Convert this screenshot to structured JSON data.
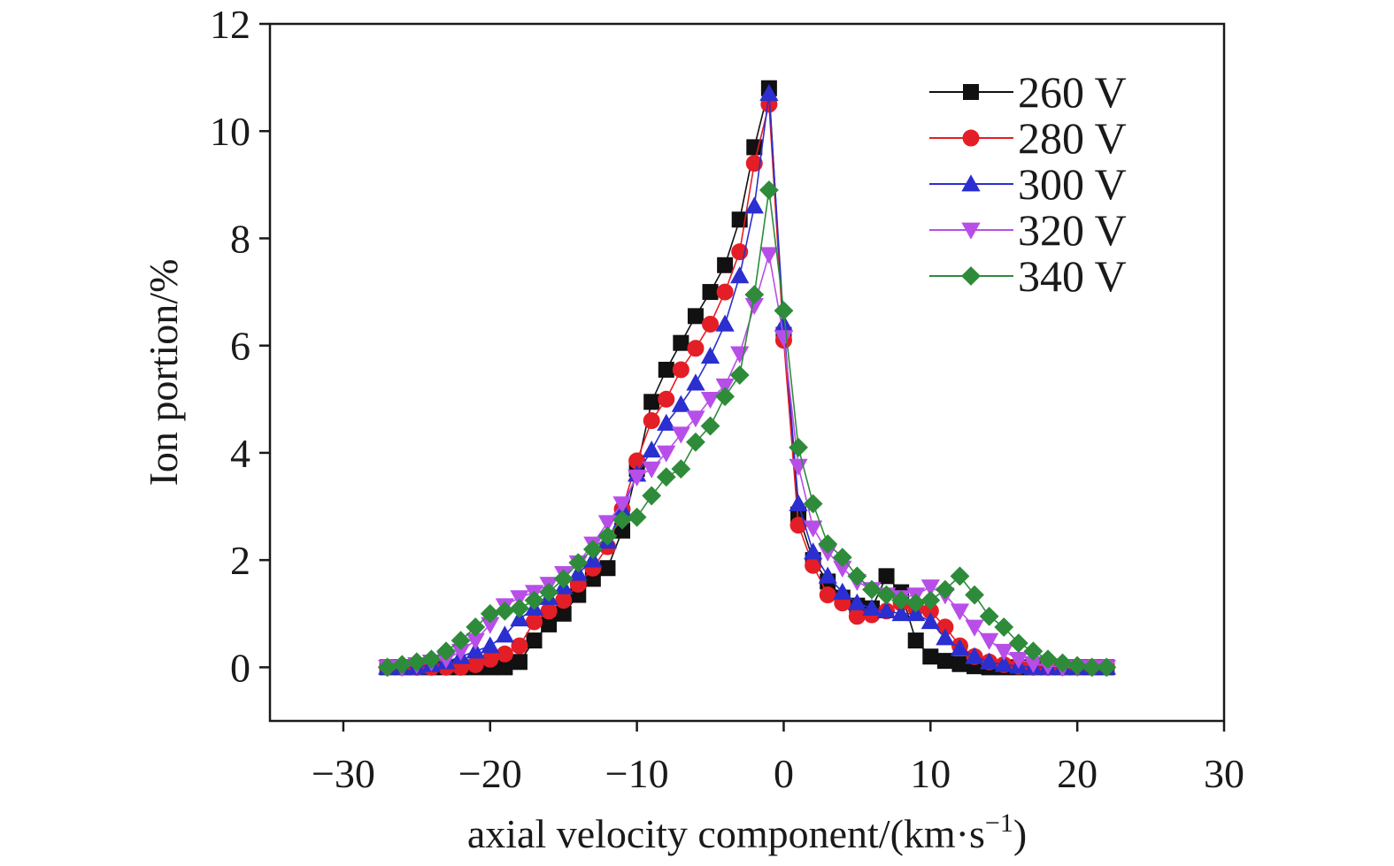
{
  "chart_data": {
    "type": "line",
    "title": "",
    "xlabel": "axial velocity component/(km·s",
    "xlabel_sup": "−1",
    "xlabel_end": ")",
    "ylabel": "Ion portion/%",
    "xlim": [
      -35,
      30
    ],
    "ylim": [
      -1,
      12
    ],
    "xticks": [
      -30,
      -20,
      -10,
      0,
      10,
      20,
      30
    ],
    "xtick_labels": [
      "−30",
      "−20",
      "−10",
      "0",
      "10",
      "20",
      "30"
    ],
    "yticks": [
      0,
      2,
      4,
      6,
      8,
      10,
      12
    ],
    "ytick_labels": [
      "0",
      "2",
      "4",
      "6",
      "8",
      "10",
      "12"
    ],
    "grid": false,
    "legend_position": "top-right",
    "series": [
      {
        "name": "260 V",
        "color": "#111111",
        "marker": "square",
        "x": [
          -27,
          -26,
          -25,
          -24,
          -23,
          -22,
          -21,
          -20,
          -19,
          -18,
          -17,
          -16,
          -15,
          -14,
          -13,
          -12,
          -11,
          -10,
          -9,
          -8,
          -7,
          -6,
          -5,
          -4,
          -3,
          -2,
          -1,
          0,
          1,
          2,
          3,
          4,
          5,
          6,
          7,
          8,
          9,
          10,
          11,
          12,
          13,
          14,
          15,
          16,
          17,
          18,
          19,
          20,
          21,
          22
        ],
        "y": [
          0,
          0,
          0,
          0,
          0,
          0,
          0,
          0,
          0,
          0.1,
          0.5,
          0.8,
          1.0,
          1.35,
          1.65,
          1.85,
          2.55,
          3.7,
          4.95,
          5.55,
          6.05,
          6.55,
          7.0,
          7.5,
          8.35,
          9.7,
          10.8,
          6.2,
          2.85,
          2.0,
          1.6,
          1.3,
          1.15,
          1.1,
          1.7,
          1.4,
          0.5,
          0.2,
          0.12,
          0.06,
          0.02,
          0,
          0,
          0,
          0,
          0,
          0,
          0,
          0,
          0
        ]
      },
      {
        "name": "280 V",
        "color": "#e41e26",
        "marker": "circle",
        "x": [
          -27,
          -26,
          -25,
          -24,
          -23,
          -22,
          -21,
          -20,
          -19,
          -18,
          -17,
          -16,
          -15,
          -14,
          -13,
          -12,
          -11,
          -10,
          -9,
          -8,
          -7,
          -6,
          -5,
          -4,
          -3,
          -2,
          -1,
          0,
          1,
          2,
          3,
          4,
          5,
          6,
          7,
          8,
          9,
          10,
          11,
          12,
          13,
          14,
          15,
          16,
          17,
          18,
          19,
          20,
          21,
          22
        ],
        "y": [
          0,
          0,
          0,
          0,
          0,
          0,
          0.05,
          0.15,
          0.25,
          0.4,
          0.85,
          1.05,
          1.25,
          1.55,
          1.85,
          2.25,
          2.95,
          3.85,
          4.6,
          5.0,
          5.55,
          5.95,
          6.4,
          7.0,
          7.75,
          9.4,
          10.5,
          6.1,
          2.65,
          1.9,
          1.35,
          1.2,
          0.95,
          0.98,
          1.05,
          1.2,
          1.1,
          1.05,
          0.75,
          0.4,
          0.2,
          0.1,
          0.05,
          0.02,
          0,
          0,
          0,
          0,
          0,
          0
        ]
      },
      {
        "name": "300 V",
        "color": "#2b2fcf",
        "marker": "triangle-up",
        "x": [
          -27,
          -26,
          -25,
          -24,
          -23,
          -22,
          -21,
          -20,
          -19,
          -18,
          -17,
          -16,
          -15,
          -14,
          -13,
          -12,
          -11,
          -10,
          -9,
          -8,
          -7,
          -6,
          -5,
          -4,
          -3,
          -2,
          -1,
          0,
          1,
          2,
          3,
          4,
          5,
          6,
          7,
          8,
          9,
          10,
          11,
          12,
          13,
          14,
          15,
          16,
          17,
          18,
          19,
          20,
          21,
          22
        ],
        "y": [
          0,
          0,
          0,
          0.05,
          0.1,
          0.2,
          0.3,
          0.4,
          0.6,
          0.9,
          1.1,
          1.3,
          1.5,
          1.75,
          2.0,
          2.35,
          2.95,
          3.6,
          4.05,
          4.55,
          4.9,
          5.3,
          5.8,
          6.4,
          7.3,
          8.6,
          10.7,
          6.4,
          3.05,
          2.15,
          1.7,
          1.4,
          1.2,
          1.1,
          1.05,
          1.0,
          1.0,
          0.85,
          0.55,
          0.35,
          0.2,
          0.1,
          0.05,
          0.02,
          0,
          0,
          0,
          0,
          0,
          0
        ]
      },
      {
        "name": "320 V",
        "color": "#b84ee8",
        "marker": "triangle-down",
        "x": [
          -27,
          -26,
          -25,
          -24,
          -23,
          -22,
          -21,
          -20,
          -19,
          -18,
          -17,
          -16,
          -15,
          -14,
          -13,
          -12,
          -11,
          -10,
          -9,
          -8,
          -7,
          -6,
          -5,
          -4,
          -3,
          -2,
          -1,
          0,
          1,
          2,
          3,
          4,
          5,
          6,
          7,
          8,
          9,
          10,
          11,
          12,
          13,
          14,
          15,
          16,
          17,
          18,
          19,
          20,
          21,
          22
        ],
        "y": [
          0,
          0,
          0.05,
          0.1,
          0.15,
          0.3,
          0.5,
          0.8,
          1.15,
          1.3,
          1.4,
          1.55,
          1.75,
          1.95,
          2.3,
          2.7,
          3.05,
          3.55,
          3.7,
          4.0,
          4.35,
          4.65,
          5.0,
          5.25,
          5.85,
          6.75,
          7.7,
          6.15,
          3.75,
          2.6,
          2.15,
          1.85,
          1.6,
          1.45,
          1.35,
          1.3,
          1.35,
          1.5,
          1.35,
          1.05,
          0.75,
          0.5,
          0.3,
          0.15,
          0.07,
          0.03,
          0,
          0,
          0,
          0
        ]
      },
      {
        "name": "340 V",
        "color": "#2e8b3a",
        "marker": "diamond",
        "x": [
          -27,
          -26,
          -25,
          -24,
          -23,
          -22,
          -21,
          -20,
          -19,
          -18,
          -17,
          -16,
          -15,
          -14,
          -13,
          -12,
          -11,
          -10,
          -9,
          -8,
          -7,
          -6,
          -5,
          -4,
          -3,
          -2,
          -1,
          0,
          1,
          2,
          3,
          4,
          5,
          6,
          7,
          8,
          9,
          10,
          11,
          12,
          13,
          14,
          15,
          16,
          17,
          18,
          19,
          20,
          21,
          22
        ],
        "y": [
          0,
          0.05,
          0.1,
          0.15,
          0.3,
          0.5,
          0.75,
          1.0,
          1.05,
          1.1,
          1.25,
          1.4,
          1.65,
          1.95,
          2.2,
          2.45,
          2.75,
          2.8,
          3.2,
          3.55,
          3.7,
          4.2,
          4.5,
          5.05,
          5.45,
          6.95,
          8.9,
          6.65,
          4.1,
          3.05,
          2.3,
          2.05,
          1.7,
          1.45,
          1.35,
          1.25,
          1.2,
          1.25,
          1.45,
          1.7,
          1.35,
          0.95,
          0.75,
          0.45,
          0.3,
          0.15,
          0.08,
          0.03,
          0,
          0
        ]
      }
    ]
  }
}
